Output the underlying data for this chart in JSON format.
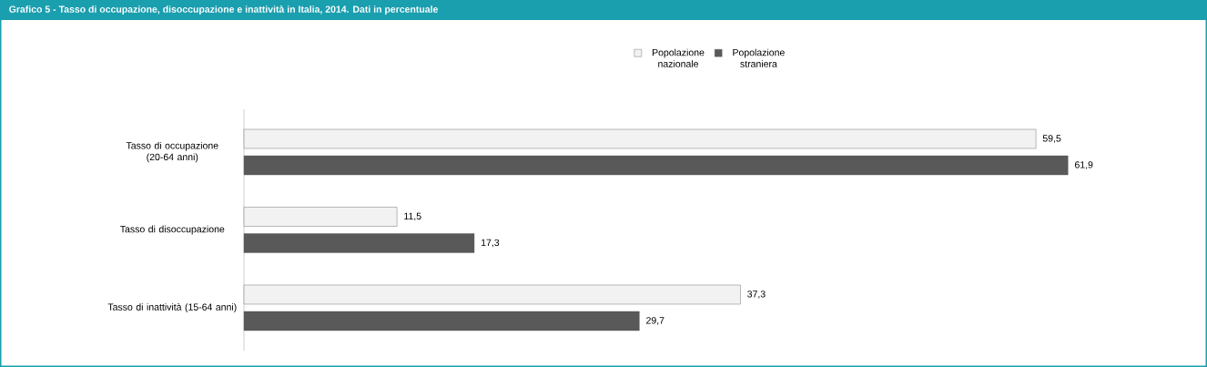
{
  "chart_data": {
    "type": "bar",
    "orientation": "horizontal",
    "title": "Grafico 5 - Tasso di occupazione, disoccupazione e inattività in Italia, 2014. Dati in percentuale",
    "categories": [
      "Tasso di occupazione (20-64 anni)",
      "Tasso di disoccupazione",
      "Tasso di inattività (15-64 anni)"
    ],
    "series": [
      {
        "name": "Popolazione nazionale",
        "color": "#f2f2f2",
        "values": [
          59.5,
          11.5,
          37.3
        ],
        "value_labels": [
          "59,5",
          "11,5",
          "37,3"
        ]
      },
      {
        "name": "Popolazione straniera",
        "color": "#595959",
        "values": [
          61.9,
          17.3,
          29.7
        ],
        "value_labels": [
          "61,9",
          "17,3",
          "29,7"
        ]
      }
    ],
    "legend": "top"
  }
}
